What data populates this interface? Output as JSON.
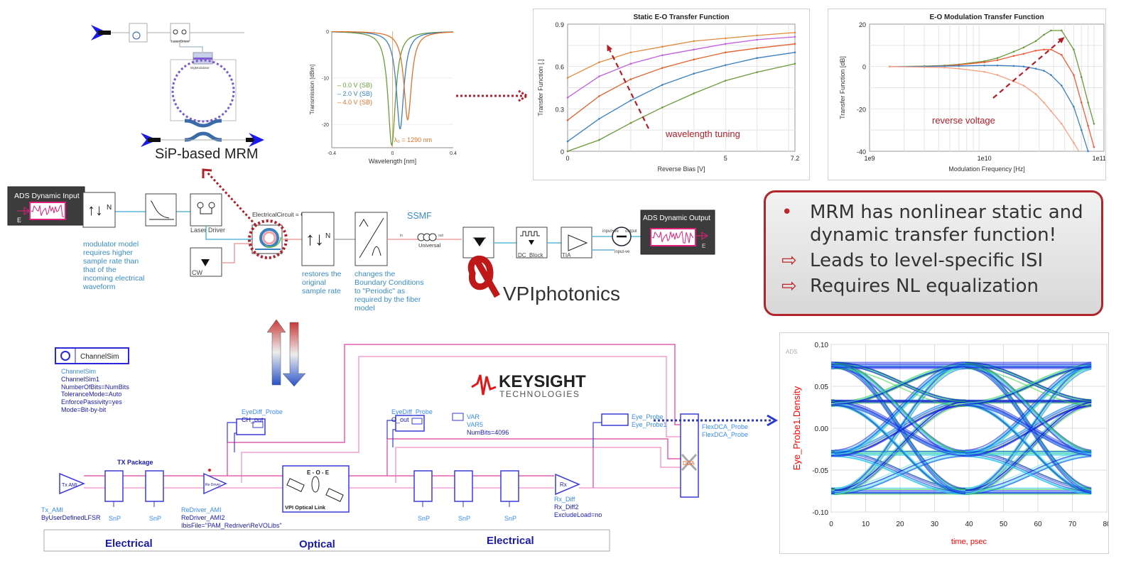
{
  "mrm_schematic": {
    "title": "SiP-based MRM",
    "laser_driver_label": "LaserDriver",
    "modulator_label": "WgModulator"
  },
  "vpi_schematic": {
    "input_block": {
      "title": "ADS Dynamic Input",
      "port": "E"
    },
    "output_block": {
      "title": "ADS Dynamic Output",
      "port": "E"
    },
    "laser_driver_label": "Laser Driver",
    "cw_label": "CW",
    "electrical_circuit_param": "ElectricalCircuit = Off",
    "ssmf_label": "SSMF",
    "fiber_label": "Universal",
    "fiber_in": "in",
    "fiber_out": "out",
    "dc_block_label": "DC_Block",
    "tia_label": "TIA",
    "diff_input_pos": "input+ve",
    "diff_output": "output",
    "diff_input_neg": "input-ve",
    "notes": [
      "modulator model requires higher sample rate than that of the incoming electrical waveform",
      "restores the original sample rate",
      "changes the Boundary Conditions to \"Periodic\" as required by the fiber model"
    ],
    "logo": "VPIphotonics"
  },
  "callout": {
    "lines": [
      {
        "bullet": "•",
        "text": "MRM has nonlinear static and dynamic transfer function!"
      },
      {
        "bullet": "⇨",
        "text": "Leads to level-specific ISI"
      },
      {
        "bullet": "⇨",
        "text": "Requires NL equalization"
      }
    ],
    "border_color": "#b0262a"
  },
  "ads_schematic": {
    "logo_main": "KEYSIGHT",
    "logo_sub": "TECHNOLOGIES",
    "channelsim": {
      "title": "ChannelSim",
      "params": [
        "ChannelSim",
        "ChannelSim1",
        "NumberOfBits=NumBits",
        "ToleranceMode=Auto",
        "EnforcePassivity=yes",
        "Mode=Bit-by-bit"
      ]
    },
    "probe_ch": {
      "type": "EyeDiff_Probe",
      "name": "CH_out"
    },
    "probe_o": {
      "type": "EyeDiff_Probe",
      "name": "O_out"
    },
    "var": {
      "type": "VAR",
      "name": "VAR5",
      "value": "NumBits=4096"
    },
    "eye_probe": {
      "type": "Eye_Probe",
      "name": "Eye_Probe1"
    },
    "flexdca": {
      "type": "FlexDCA_Probe",
      "name": "FlexDCA_Probe",
      "glyph": "DCA"
    },
    "tx_package_label": "TX Package",
    "tx": {
      "glyph": "Tx AMI",
      "type": "Tx_AMI",
      "param": "ByUserDefinedLFSR"
    },
    "redriver": {
      "glyph": "Re Driver",
      "type": "ReDriver_AMI",
      "name": "ReDriver_AMI2",
      "param": "IbisFile=\"PAM_Redriver\\ReVOLibs\""
    },
    "eoe": {
      "title": "E - O - E",
      "label": "VPI Optical Link"
    },
    "rx": {
      "glyph": "Rx",
      "type": "Rx_Diff",
      "name": "Rx_Diff2",
      "param": "ExcludeLoad=no"
    },
    "snp_label": "SnP",
    "domains": [
      "Electrical",
      "Optical",
      "Electrical"
    ]
  },
  "chart_data": [
    {
      "type": "line",
      "title": "",
      "xlabel": "Wavelength [nm]",
      "ylabel": "Transmission [dBm]",
      "xlim": [
        -0.4,
        0.4
      ],
      "ylim": [
        -25,
        0
      ],
      "xticks": [
        "-0.4",
        "0",
        "0.4"
      ],
      "yticks": [
        "0",
        "-10",
        "-20"
      ],
      "annotation": "λ₀ = 1290 nm",
      "legend_position": "left",
      "series": [
        {
          "name": "0.0 V (SB)",
          "color": "#6a9a3a",
          "resonance_nm": -0.005,
          "min_dB": -24.5
        },
        {
          "name": "2.0 V (SB)",
          "color": "#3a80c0",
          "resonance_nm": 0.05,
          "min_dB": -21
        },
        {
          "name": "4.0 V (SB)",
          "color": "#e0702a",
          "resonance_nm": 0.1,
          "min_dB": -19
        }
      ]
    },
    {
      "type": "line",
      "title": "Static E-O Transfer Function",
      "xlabel": "Reverse Bias [V]",
      "ylabel": "Transfer Function [.]",
      "xlim": [
        0,
        7.2
      ],
      "ylim": [
        0,
        0.9
      ],
      "xticks": [
        "0",
        "5",
        "7.2"
      ],
      "yticks": [
        "0",
        "0.3",
        "0.6",
        "0.9"
      ],
      "grid": true,
      "annotation": "wavelength tuning",
      "x": [
        0,
        1,
        2,
        3,
        4,
        5,
        6,
        7.2
      ],
      "series": [
        {
          "color": "#6a9a3a",
          "values": [
            0,
            0.08,
            0.2,
            0.31,
            0.41,
            0.5,
            0.56,
            0.62
          ]
        },
        {
          "color": "#3a80c0",
          "values": [
            0.07,
            0.23,
            0.36,
            0.47,
            0.55,
            0.61,
            0.66,
            0.7
          ]
        },
        {
          "color": "#e0602a",
          "values": [
            0.22,
            0.39,
            0.51,
            0.59,
            0.65,
            0.7,
            0.73,
            0.76
          ]
        },
        {
          "color": "#c060e0",
          "values": [
            0.38,
            0.53,
            0.62,
            0.68,
            0.72,
            0.76,
            0.79,
            0.81
          ]
        },
        {
          "color": "#e08a40",
          "values": [
            0.52,
            0.63,
            0.7,
            0.74,
            0.78,
            0.8,
            0.82,
            0.84
          ]
        }
      ]
    },
    {
      "type": "line",
      "title": "E-O Modulation Transfer Function",
      "xlabel": "Modulation Frequency [Hz]",
      "ylabel": "Transfer Function [dB]",
      "xscale": "log",
      "xlim": [
        1000000000.0,
        110000000000.0
      ],
      "ylim": [
        -40,
        20
      ],
      "xticks": [
        "1e9",
        "1e10",
        "1e11"
      ],
      "yticks": [
        "20",
        "0",
        "-20",
        "-40"
      ],
      "grid": true,
      "annotation": "reverse voltage",
      "x": [
        1500000000.0,
        3000000000.0,
        4500000000.0,
        6000000000.0,
        10000000000.0,
        13000000000.0,
        18000000000.0,
        22000000000.0,
        28000000000.0,
        33000000000.0,
        38000000000.0,
        47000000000.0,
        60000000000.0,
        70000000000.0,
        80000000000.0,
        90000000000.0
      ],
      "series": [
        {
          "color": "#6a9a3a",
          "values": [
            0,
            0.2,
            0.5,
            1,
            2.5,
            4,
            7,
            9,
            12,
            15,
            17,
            17,
            8,
            -5,
            -17,
            -27
          ]
        },
        {
          "color": "#f05a3a",
          "values": [
            0,
            0,
            0.3,
            0.8,
            2,
            3,
            5,
            6,
            7.5,
            8,
            8,
            5.5,
            -4,
            -17,
            -28,
            -38
          ]
        },
        {
          "color": "#3a80c0",
          "values": [
            0,
            0,
            0.2,
            0.3,
            0.5,
            0.5,
            0.3,
            0,
            -1,
            -2,
            -4,
            -9,
            -19,
            -30,
            -40,
            -50
          ]
        },
        {
          "color": "#f8a080",
          "values": [
            0,
            -0.3,
            -0.5,
            -1,
            -2.5,
            -4,
            -7,
            -9,
            -13,
            -17,
            -21,
            -27,
            -36,
            -42,
            -50,
            -55
          ]
        }
      ]
    },
    {
      "type": "heatmap",
      "title": "",
      "watermark": "ADS",
      "xlabel": "time, psec",
      "ylabel": "Eye_Probe1.Density",
      "xlim": [
        0,
        80
      ],
      "ylim": [
        -0.1,
        0.1
      ],
      "xticks": [
        "0",
        "10",
        "20",
        "30",
        "40",
        "50",
        "60",
        "70",
        "80"
      ],
      "yticks": [
        "0.10",
        "0.05",
        "0.00",
        "-0.05",
        "-0.10"
      ],
      "grid": true,
      "label_color": "#ff0000",
      "pam4_levels": [
        -0.075,
        -0.03,
        0.03,
        0.075
      ],
      "unit_interval_ps": 38
    }
  ]
}
